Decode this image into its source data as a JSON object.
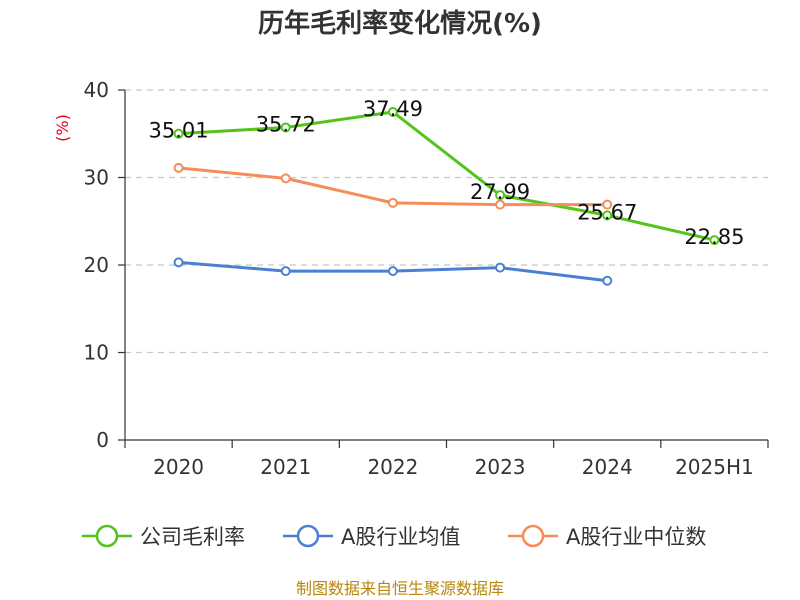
{
  "chart_data": {
    "type": "line",
    "title": "历年毛利率变化情况(%)",
    "ylabel": "(%)",
    "xlabel": "",
    "categories": [
      "2020",
      "2021",
      "2022",
      "2023",
      "2024",
      "2025H1"
    ],
    "ylim": [
      0,
      40
    ],
    "yticks": [
      0,
      10,
      20,
      30,
      40
    ],
    "grid": true,
    "legend_position": "bottom",
    "series": [
      {
        "name": "公司毛利率",
        "color": "#52c41a",
        "values": [
          35.01,
          35.72,
          37.49,
          27.99,
          25.67,
          22.85
        ],
        "labels": [
          "35.01",
          "35.72",
          "37.49",
          "27.99",
          "25.67",
          "22.85"
        ]
      },
      {
        "name": "A股行业均值",
        "color": "#4a7fd4",
        "values": [
          20.3,
          19.3,
          19.3,
          19.7,
          18.2,
          null
        ]
      },
      {
        "name": "A股行业中位数",
        "color": "#f58c5a",
        "values": [
          31.1,
          29.9,
          27.1,
          26.9,
          26.9,
          null
        ]
      }
    ],
    "source": "制图数据来自恒生聚源数据库"
  }
}
